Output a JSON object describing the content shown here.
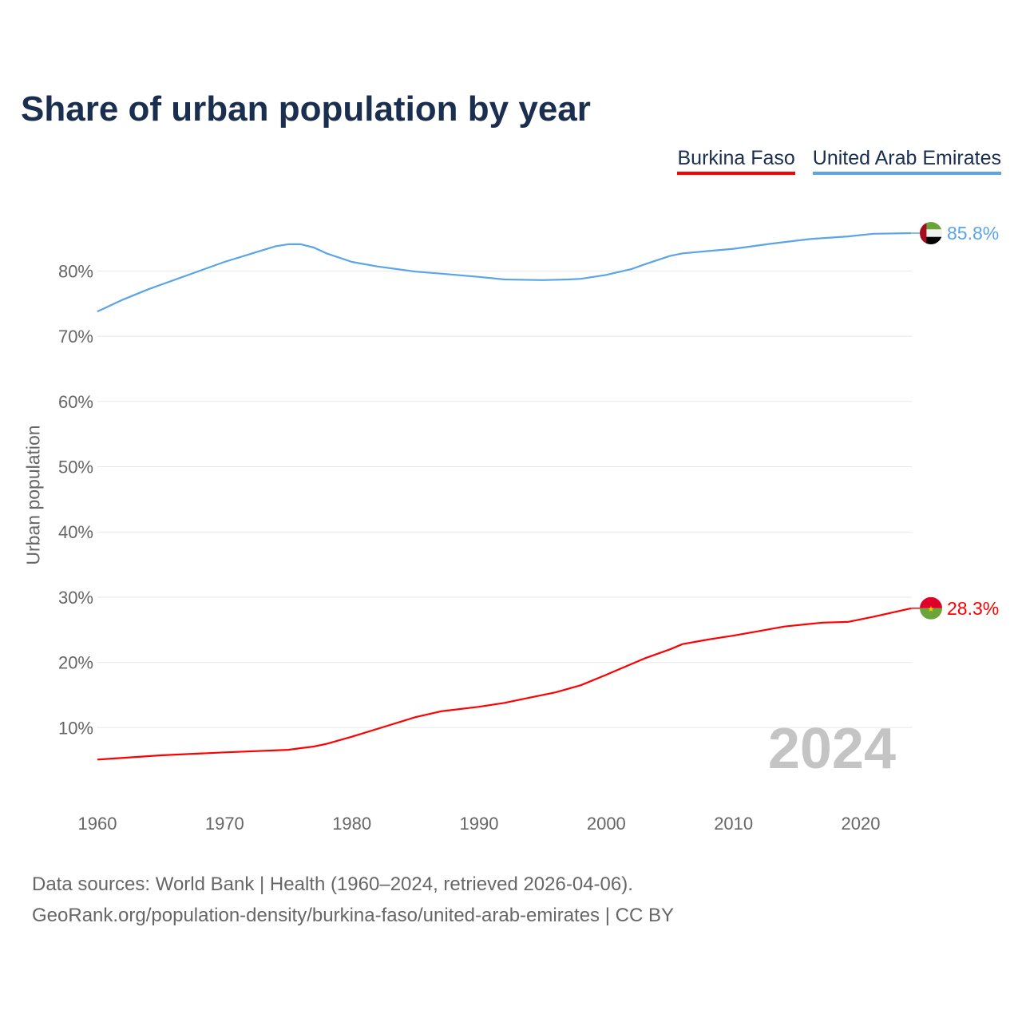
{
  "chart_data": {
    "type": "line",
    "title": "Share of urban population by year",
    "xlabel": "",
    "ylabel": "Urban population",
    "xlim": [
      1960,
      2024
    ],
    "ylim": [
      0,
      90
    ],
    "grid": true,
    "legend_placement": "top-right",
    "x_ticks": [
      "1960",
      "1970",
      "1980",
      "1990",
      "2000",
      "2010",
      "2020"
    ],
    "y_ticks": [
      "10%",
      "20%",
      "30%",
      "40%",
      "50%",
      "60%",
      "70%",
      "80%"
    ],
    "watermark_year": "2024",
    "series": [
      {
        "name": "Burkina Faso",
        "color": "#ff0000",
        "end_label": "28.3%",
        "x": [
          1960,
          1965,
          1970,
          1975,
          1976,
          1977,
          1978,
          1980,
          1983,
          1985,
          1987,
          1990,
          1992,
          1994,
          1996,
          1998,
          2000,
          2003,
          2005,
          2006,
          2008,
          2010,
          2012,
          2014,
          2017,
          2019,
          2021,
          2024
        ],
        "y": [
          5.1,
          5.75,
          6.2,
          6.6,
          6.85,
          7.1,
          7.5,
          8.6,
          10.4,
          11.6,
          12.5,
          13.2,
          13.8,
          14.6,
          15.4,
          16.5,
          18.1,
          20.6,
          22.0,
          22.8,
          23.5,
          24.1,
          24.8,
          25.5,
          26.1,
          26.2,
          27.0,
          28.3
        ]
      },
      {
        "name": "United Arab Emirates",
        "color": "#5aa5e8",
        "end_label": "85.8%",
        "x": [
          1960,
          1962,
          1964,
          1967,
          1970,
          1972,
          1974,
          1975,
          1976,
          1977,
          1978,
          1980,
          1982,
          1985,
          1987,
          1990,
          1992,
          1995,
          1997,
          1998,
          2000,
          2002,
          2003,
          2005,
          2006,
          2010,
          2013,
          2016,
          2019,
          2021,
          2024
        ],
        "y": [
          73.8,
          75.6,
          77.2,
          79.3,
          81.4,
          82.6,
          83.8,
          84.1,
          84.1,
          83.6,
          82.7,
          81.4,
          80.7,
          79.9,
          79.6,
          79.1,
          78.7,
          78.6,
          78.7,
          78.8,
          79.4,
          80.3,
          81.0,
          82.3,
          82.7,
          83.4,
          84.2,
          84.9,
          85.3,
          85.7,
          85.8
        ]
      }
    ]
  },
  "source": {
    "line1": "Data sources: World Bank | Health (1960–2024, retrieved 2026-04-06).",
    "line2": "GeoRank.org/population-density/burkina-faso/united-arab-emirates | CC BY"
  }
}
